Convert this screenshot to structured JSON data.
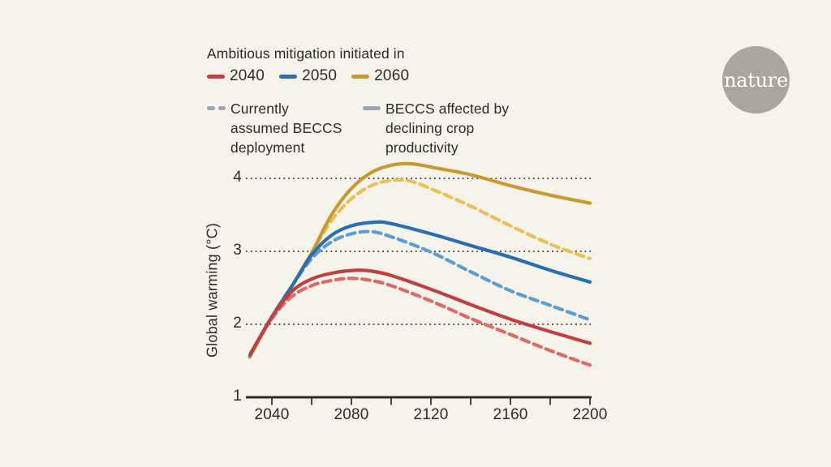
{
  "page": {
    "background": "#f5f3ea",
    "text_color": "#2d2c29"
  },
  "logo": {
    "text": "nature",
    "circle_color": "#a9a79d",
    "text_color": "#ffffff"
  },
  "legend": {
    "title": "Ambitious mitigation initiated in",
    "scenarios": [
      {
        "label": "2040",
        "color": "#c04041"
      },
      {
        "label": "2050",
        "color": "#2a6fae"
      },
      {
        "label": "2060",
        "color": "#c69a31"
      }
    ],
    "styles": [
      {
        "label": "Currently assumed BECCS deployment",
        "swatch": "dashed",
        "color": "#9aa5b9"
      },
      {
        "label": "BECCS affected by declining crop productivity",
        "swatch": "solid",
        "color": "#9aa5b9"
      }
    ]
  },
  "chart_data": {
    "type": "line",
    "title": "Ambitious mitigation initiated in 2040 / 2050 / 2060",
    "xlabel": "",
    "ylabel": "Global warming (°C)",
    "xlim": [
      2029,
      2200
    ],
    "ylim": [
      1,
      4.35
    ],
    "xticks_labeled": [
      "2040",
      "2080",
      "2120",
      "2160",
      "2200"
    ],
    "xticks_minor": [
      2040,
      2060,
      2080,
      2100,
      2120,
      2140,
      2160,
      2180,
      2200
    ],
    "yticks": [
      "1",
      "2",
      "3",
      "4"
    ],
    "gridlines_y": [
      2,
      3,
      4
    ],
    "grid_style": "dotted",
    "legend_position": "top-left",
    "axis_color": "#2d2c29",
    "gridline_color": "#3b3a35",
    "series": [
      {
        "name": "2060 – currently assumed BECCS deployment",
        "scenario": "2060",
        "variant": "assumed",
        "color": "#e7c155",
        "dashed": true,
        "points": [
          [
            2028.8,
            1.55
          ],
          [
            2040,
            2.1
          ],
          [
            2050,
            2.52
          ],
          [
            2060,
            2.98
          ],
          [
            2070,
            3.42
          ],
          [
            2080,
            3.72
          ],
          [
            2090,
            3.9
          ],
          [
            2100,
            3.97
          ],
          [
            2110,
            3.96
          ],
          [
            2125,
            3.8
          ],
          [
            2140,
            3.62
          ],
          [
            2160,
            3.35
          ],
          [
            2180,
            3.1
          ],
          [
            2200,
            2.9
          ]
        ]
      },
      {
        "name": "2060 – BECCS affected by declining crop productivity",
        "scenario": "2060",
        "variant": "affected",
        "color": "#c69a31",
        "dashed": false,
        "points": [
          [
            2028.8,
            1.55
          ],
          [
            2040,
            2.1
          ],
          [
            2050,
            2.52
          ],
          [
            2060,
            2.98
          ],
          [
            2070,
            3.5
          ],
          [
            2080,
            3.86
          ],
          [
            2090,
            4.08
          ],
          [
            2100,
            4.18
          ],
          [
            2110,
            4.2
          ],
          [
            2125,
            4.13
          ],
          [
            2140,
            4.05
          ],
          [
            2160,
            3.9
          ],
          [
            2180,
            3.77
          ],
          [
            2200,
            3.66
          ]
        ]
      },
      {
        "name": "2050 – currently assumed BECCS deployment",
        "scenario": "2050",
        "variant": "assumed",
        "color": "#5c9dd3",
        "dashed": true,
        "points": [
          [
            2029,
            1.58
          ],
          [
            2040,
            2.1
          ],
          [
            2050,
            2.52
          ],
          [
            2060,
            2.9
          ],
          [
            2070,
            3.13
          ],
          [
            2080,
            3.24
          ],
          [
            2090,
            3.27
          ],
          [
            2100,
            3.2
          ],
          [
            2120,
            2.99
          ],
          [
            2140,
            2.72
          ],
          [
            2160,
            2.46
          ],
          [
            2180,
            2.26
          ],
          [
            2200,
            2.06
          ]
        ]
      },
      {
        "name": "2050 – BECCS affected by declining crop productivity",
        "scenario": "2050",
        "variant": "affected",
        "color": "#2a6fae",
        "dashed": false,
        "points": [
          [
            2029,
            1.58
          ],
          [
            2040,
            2.1
          ],
          [
            2050,
            2.52
          ],
          [
            2060,
            2.95
          ],
          [
            2070,
            3.22
          ],
          [
            2080,
            3.35
          ],
          [
            2092,
            3.4
          ],
          [
            2100,
            3.38
          ],
          [
            2120,
            3.24
          ],
          [
            2140,
            3.08
          ],
          [
            2160,
            2.92
          ],
          [
            2180,
            2.74
          ],
          [
            2200,
            2.58
          ]
        ]
      },
      {
        "name": "2040 – currently assumed BECCS deployment",
        "scenario": "2040",
        "variant": "assumed",
        "color": "#dc6a68",
        "dashed": true,
        "points": [
          [
            2029.3,
            1.6
          ],
          [
            2040,
            2.08
          ],
          [
            2050,
            2.38
          ],
          [
            2060,
            2.53
          ],
          [
            2070,
            2.6
          ],
          [
            2080,
            2.63
          ],
          [
            2090,
            2.6
          ],
          [
            2100,
            2.53
          ],
          [
            2120,
            2.32
          ],
          [
            2140,
            2.08
          ],
          [
            2160,
            1.86
          ],
          [
            2180,
            1.64
          ],
          [
            2200,
            1.44
          ]
        ]
      },
      {
        "name": "2040 – BECCS affected by declining crop productivity",
        "scenario": "2040",
        "variant": "affected",
        "color": "#c04041",
        "dashed": false,
        "points": [
          [
            2029.3,
            1.6
          ],
          [
            2040,
            2.1
          ],
          [
            2050,
            2.45
          ],
          [
            2060,
            2.62
          ],
          [
            2070,
            2.7
          ],
          [
            2082,
            2.74
          ],
          [
            2090,
            2.73
          ],
          [
            2100,
            2.67
          ],
          [
            2120,
            2.48
          ],
          [
            2140,
            2.27
          ],
          [
            2160,
            2.07
          ],
          [
            2180,
            1.9
          ],
          [
            2200,
            1.74
          ]
        ]
      }
    ]
  }
}
